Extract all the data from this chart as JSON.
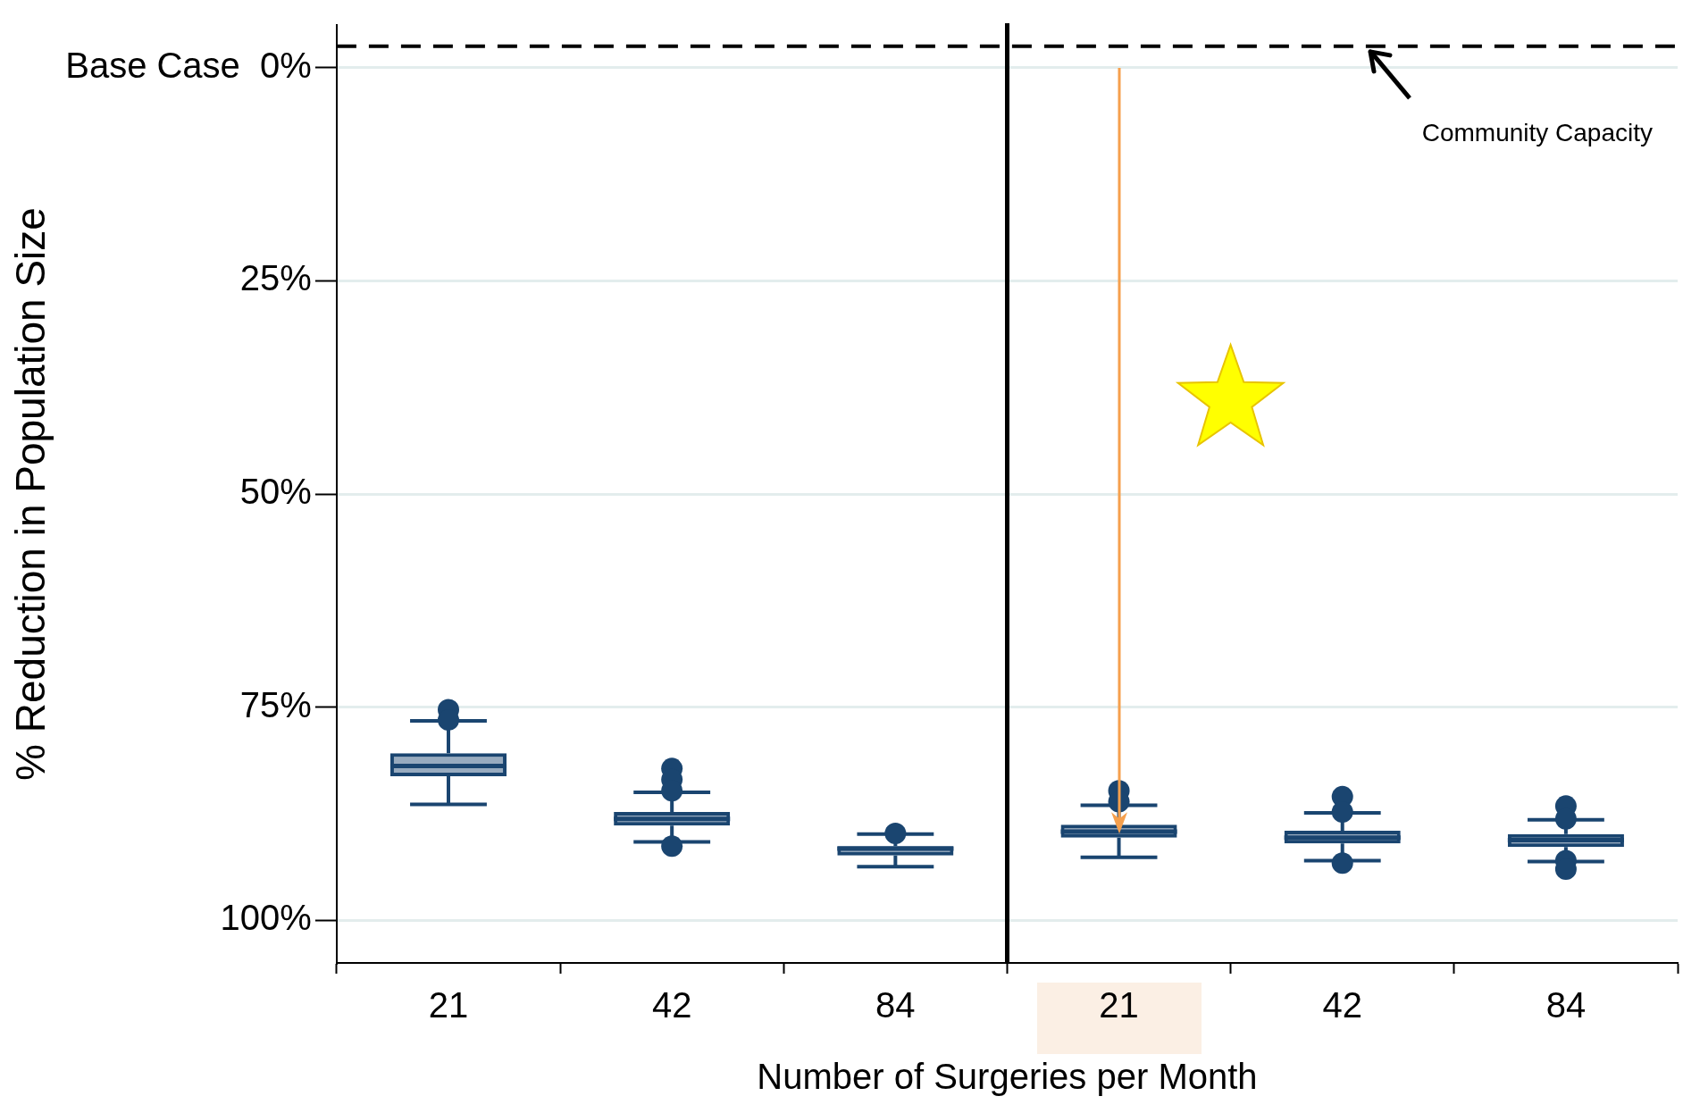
{
  "chart_data": {
    "type": "box",
    "ylabel": "% Reduction in Population Size",
    "xlabel": "Number of Surgeries per Month",
    "categories": [
      "21",
      "42",
      "84",
      "21",
      "42",
      "84"
    ],
    "color": "#1a4570",
    "boxes": [
      {
        "low": 86.4,
        "q1": 83.1,
        "median": 81.9,
        "q3": 80.4,
        "high": 76.6,
        "outliers": [
          75.3,
          76.5
        ]
      },
      {
        "low": 90.8,
        "q1": 88.9,
        "median": 88.1,
        "q3": 87.3,
        "high": 85.0,
        "outliers": [
          82.2,
          83.5,
          84.8,
          91.3
        ]
      },
      {
        "low": 93.7,
        "q1": 92.4,
        "median": 91.6,
        "q3": 91.3,
        "high": 89.9,
        "outliers": [
          89.8
        ]
      },
      {
        "low": 92.6,
        "q1": 90.3,
        "median": 89.6,
        "q3": 88.8,
        "high": 86.5,
        "outliers": [
          84.8,
          86.1
        ]
      },
      {
        "low": 93.0,
        "q1": 91.0,
        "median": 90.3,
        "q3": 89.5,
        "high": 87.4,
        "outliers": [
          85.5,
          87.3,
          93.3
        ]
      },
      {
        "low": 93.1,
        "q1": 91.4,
        "median": 90.6,
        "q3": 89.9,
        "high": 88.2,
        "outliers": [
          86.6,
          88.1,
          93.0,
          94.0
        ]
      }
    ],
    "ylim": [
      105,
      -5
    ],
    "yticks": [
      {
        "value": 0,
        "label": "Base Case  0%"
      },
      {
        "value": 25,
        "label": "25%"
      },
      {
        "value": 50,
        "label": "50%"
      },
      {
        "value": 75,
        "label": "75%"
      },
      {
        "value": 100,
        "label": "100%"
      }
    ],
    "grid": "y",
    "ref_lines": [
      {
        "axis": "y",
        "value": -2.5,
        "label": "Community Capacity",
        "color": "#000000",
        "line_style": "dashed"
      }
    ]
  }
}
